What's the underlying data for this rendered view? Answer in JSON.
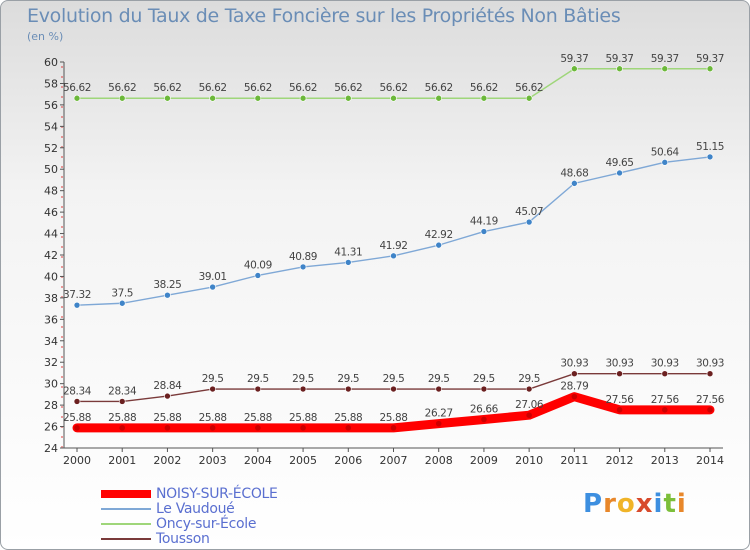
{
  "title": "Evolution du Taux de Taxe Foncière sur les Propriétés Non Bâties",
  "unit_label": "(en %)",
  "logo": {
    "letters": [
      "P",
      "r",
      "o",
      "x",
      "i",
      "t",
      "i"
    ],
    "colors": [
      "#3d8fe0",
      "#e8872a",
      "#f0b428",
      "#d84a2c",
      "#3d8fe0",
      "#7cbf3a",
      "#e8872a"
    ]
  },
  "chart_data": {
    "type": "line",
    "title": "Evolution du Taux de Taxe Foncière sur les Propriétés Non Bâties",
    "ylabel": "(en %)",
    "xlabel": "",
    "x": [
      2000,
      2001,
      2002,
      2003,
      2004,
      2005,
      2006,
      2007,
      2008,
      2009,
      2010,
      2011,
      2012,
      2013,
      2014
    ],
    "ylim": [
      24,
      60
    ],
    "yticks": [
      24,
      26,
      28,
      30,
      32,
      34,
      36,
      38,
      40,
      42,
      44,
      46,
      48,
      50,
      52,
      54,
      56,
      58,
      60
    ],
    "grid": false,
    "legend_position": "bottom-left",
    "series": [
      {
        "name": "NOISY-SUR-ÉCOLE",
        "color": "#ff0000",
        "marker_color": "#cc0000",
        "emphasis": "thick",
        "values": [
          25.88,
          25.88,
          25.88,
          25.88,
          25.88,
          25.88,
          25.88,
          25.88,
          26.27,
          26.66,
          27.06,
          28.79,
          27.56,
          27.56,
          27.56
        ],
        "labels": [
          "25.88",
          "25.88",
          "25.88",
          "25.88",
          "25.88",
          "25.88",
          "25.88",
          "25.88",
          "26.27",
          "26.66",
          "27.06",
          "28.79",
          "27.56",
          "27.56",
          "27.56"
        ]
      },
      {
        "name": "Le Vaudoué",
        "color": "#7fa8d6",
        "marker_color": "#3f84c8",
        "values": [
          37.32,
          37.5,
          38.25,
          39.01,
          40.09,
          40.89,
          41.31,
          41.92,
          42.92,
          44.19,
          45.07,
          48.68,
          49.65,
          50.64,
          51.15
        ],
        "labels": [
          "37.32",
          "37.5",
          "38.25",
          "39.01",
          "40.09",
          "40.89",
          "41.31",
          "41.92",
          "42.92",
          "44.19",
          "45.07",
          "48.68",
          "49.65",
          "50.64",
          "51.15"
        ]
      },
      {
        "name": "Oncy-sur-École",
        "color": "#9fd67a",
        "marker_color": "#6cb83a",
        "values": [
          56.62,
          56.62,
          56.62,
          56.62,
          56.62,
          56.62,
          56.62,
          56.62,
          56.62,
          56.62,
          56.62,
          59.37,
          59.37,
          59.37,
          59.37
        ],
        "labels": [
          "56.62",
          "56.62",
          "56.62",
          "56.62",
          "56.62",
          "56.62",
          "56.62",
          "56.62",
          "56.62",
          "56.62",
          "56.62",
          "59.37",
          "59.37",
          "59.37",
          "59.37"
        ]
      },
      {
        "name": "Tousson",
        "color": "#7a3a3a",
        "marker_color": "#6b2020",
        "values": [
          28.34,
          28.34,
          28.84,
          29.5,
          29.5,
          29.5,
          29.5,
          29.5,
          29.5,
          29.5,
          29.5,
          30.93,
          30.93,
          30.93,
          30.93
        ],
        "labels": [
          "28.34",
          "28.34",
          "28.84",
          "29.5",
          "29.5",
          "29.5",
          "29.5",
          "29.5",
          "29.5",
          "29.5",
          "29.5",
          "30.93",
          "30.93",
          "30.93",
          "30.93"
        ]
      }
    ]
  }
}
